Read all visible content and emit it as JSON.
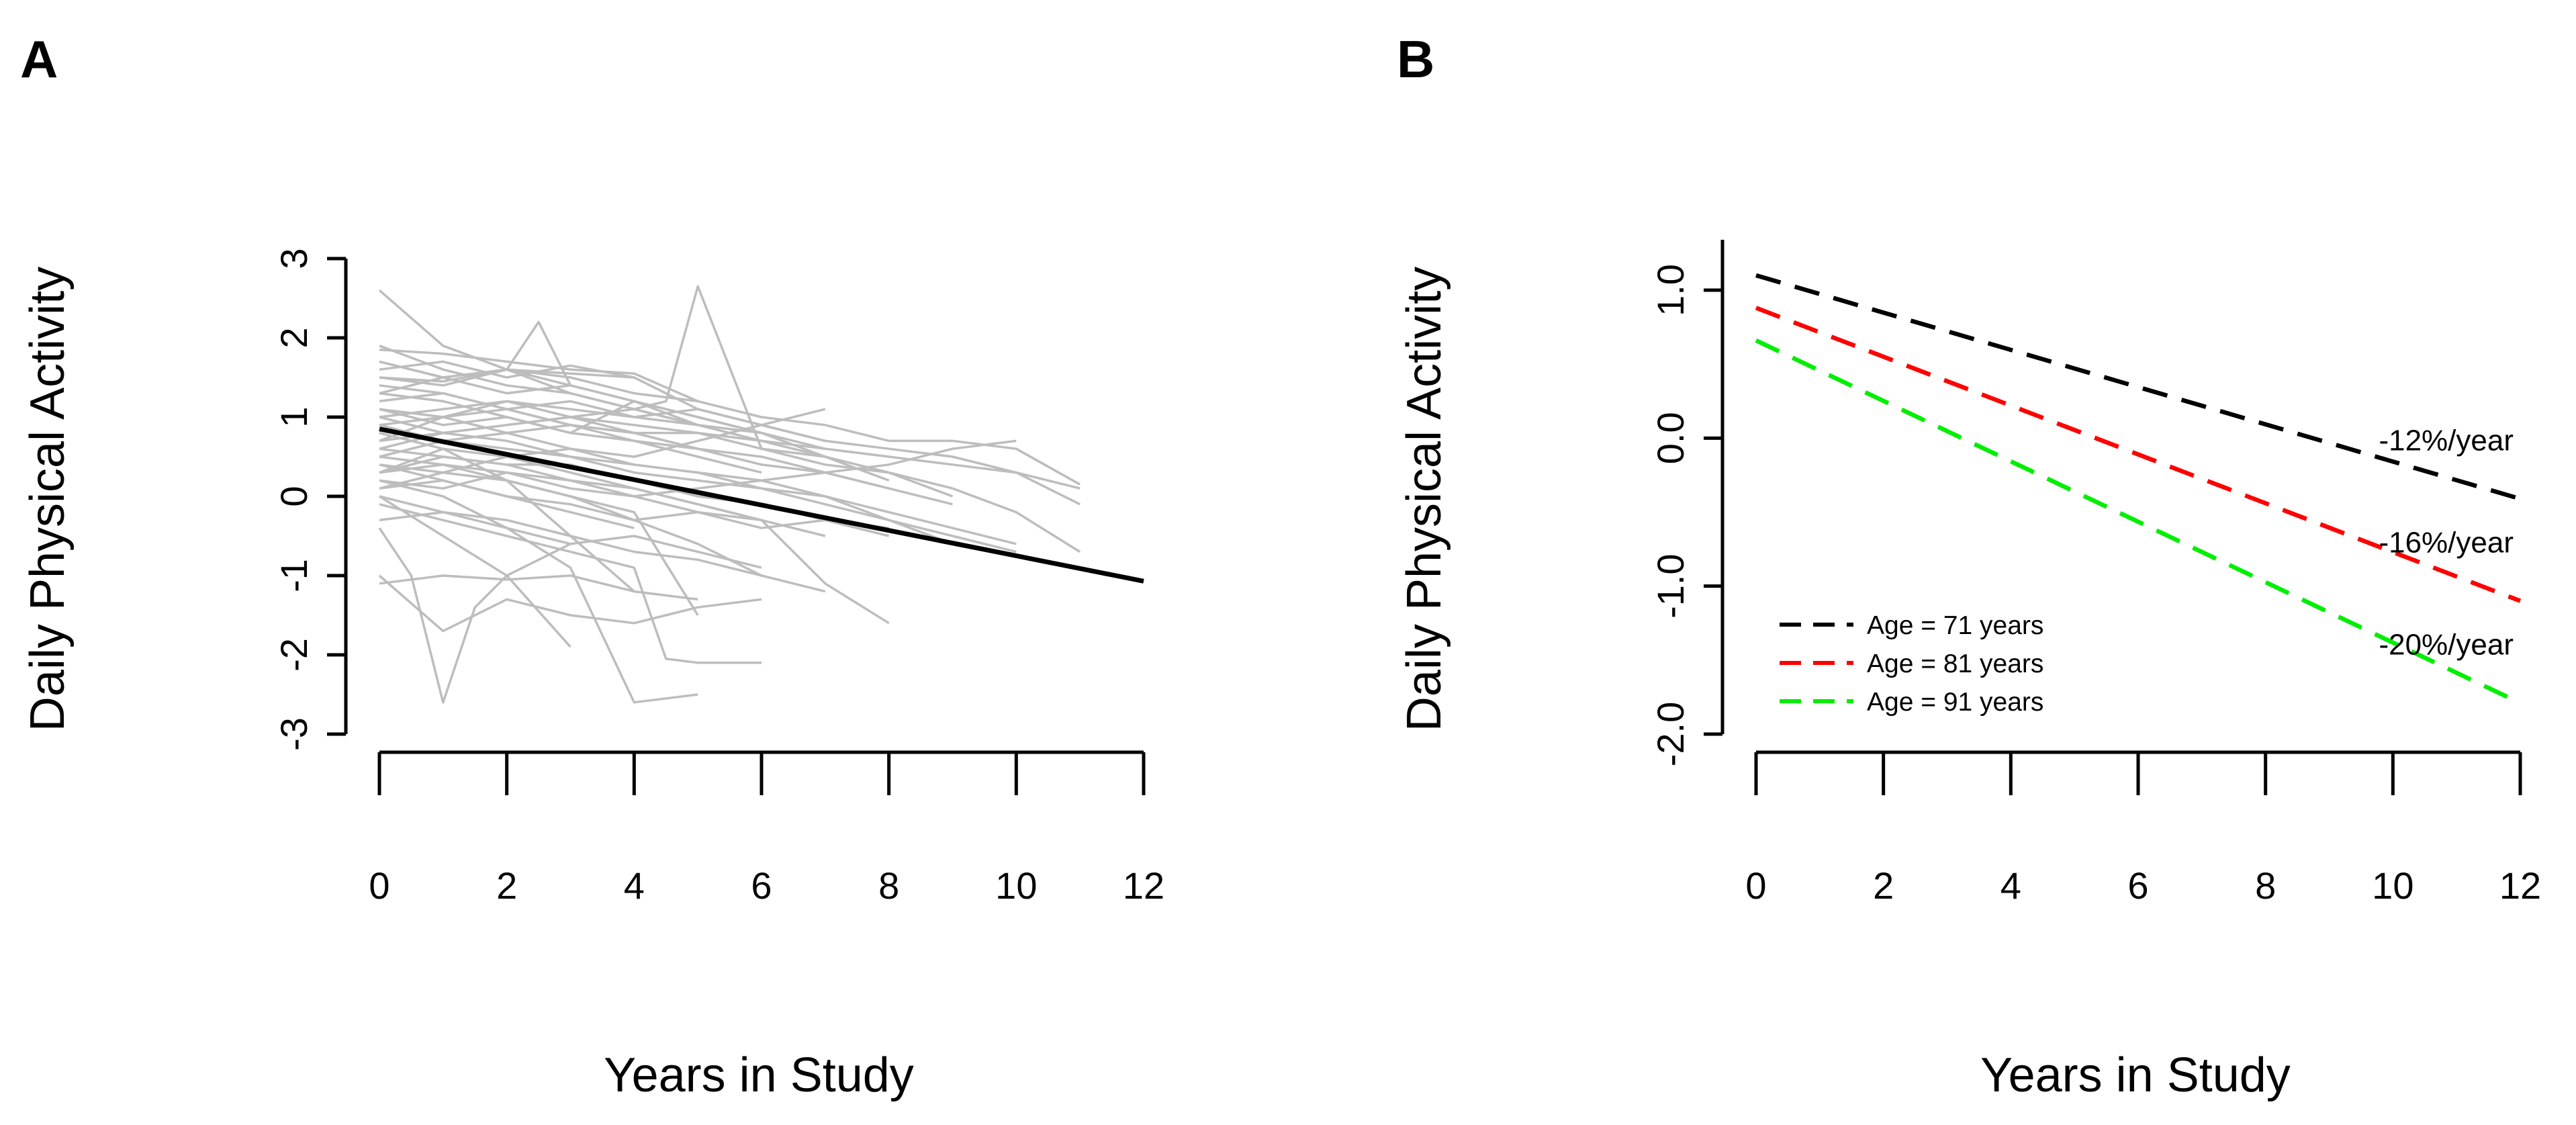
{
  "chart_data": [
    {
      "panel": "A",
      "type": "line",
      "xlabel": "Years in Study",
      "ylabel": "Daily Physical Activity",
      "xlim": [
        0,
        12
      ],
      "ylim": [
        -3,
        3
      ],
      "x_ticks": [
        "0",
        "2",
        "4",
        "6",
        "8",
        "10",
        "12"
      ],
      "y_ticks": [
        "-3",
        "-2",
        "-1",
        "0",
        "1",
        "2",
        "3"
      ],
      "grid": false,
      "colors": {
        "individual": "#bdbdbd",
        "mean": "#000000"
      },
      "mean_line": {
        "x": [
          0,
          12
        ],
        "y": [
          0.85,
          -1.07
        ]
      },
      "individual_trajectories": [
        {
          "x": [
            0,
            1,
            2,
            3,
            4,
            5
          ],
          "y": [
            2.6,
            1.9,
            1.6,
            1.3,
            1.1,
            0.9
          ]
        },
        {
          "x": [
            0,
            1,
            2,
            3,
            4,
            5,
            6,
            7,
            8,
            9,
            10,
            11
          ],
          "y": [
            1.85,
            1.8,
            1.7,
            1.6,
            1.55,
            1.2,
            1.0,
            0.9,
            0.7,
            0.7,
            0.6,
            0.15
          ]
        },
        {
          "x": [
            0,
            1,
            2,
            3,
            4,
            5,
            6,
            7,
            8,
            9,
            10,
            11
          ],
          "y": [
            1.5,
            1.45,
            1.6,
            1.55,
            1.5,
            1.1,
            0.9,
            0.7,
            0.6,
            0.5,
            0.3,
            -0.1
          ]
        },
        {
          "x": [
            0,
            1,
            2,
            3,
            4,
            5,
            6,
            7,
            8,
            9,
            10,
            11
          ],
          "y": [
            1.0,
            1.1,
            1.2,
            1.1,
            1.0,
            0.9,
            0.7,
            0.5,
            0.3,
            0.1,
            -0.2,
            -0.7
          ]
        },
        {
          "x": [
            0,
            1,
            2,
            3,
            4,
            5,
            6,
            7,
            8
          ],
          "y": [
            1.7,
            1.5,
            1.3,
            1.4,
            1.2,
            0.9,
            0.8,
            0.5,
            0.2
          ]
        },
        {
          "x": [
            0,
            1,
            2,
            3,
            4,
            5,
            6,
            7,
            8,
            9
          ],
          "y": [
            1.2,
            1.3,
            1.1,
            0.9,
            0.8,
            0.8,
            0.6,
            0.4,
            0.3,
            0.0
          ]
        },
        {
          "x": [
            0,
            1,
            2,
            3,
            4,
            5,
            6,
            7,
            8,
            9,
            10
          ],
          "y": [
            0.5,
            0.7,
            0.6,
            0.5,
            0.4,
            0.3,
            0.2,
            0.0,
            -0.2,
            -0.4,
            -0.6
          ]
        },
        {
          "x": [
            0,
            1,
            2,
            2.5,
            3,
            4,
            5,
            6,
            7
          ],
          "y": [
            1.3,
            1.5,
            1.6,
            2.2,
            1.4,
            1.2,
            1.0,
            0.8,
            0.6
          ]
        },
        {
          "x": [
            0,
            1,
            2,
            3,
            4,
            4.5,
            5,
            6,
            7
          ],
          "y": [
            0.6,
            0.8,
            0.9,
            1.0,
            1.1,
            1.2,
            2.65,
            0.6,
            0.5
          ]
        },
        {
          "x": [
            0,
            1,
            2,
            3,
            4,
            5,
            6,
            7
          ],
          "y": [
            0.9,
            0.7,
            0.8,
            0.6,
            0.5,
            0.7,
            0.9,
            1.1
          ]
        },
        {
          "x": [
            0,
            1,
            2,
            3,
            4,
            5,
            6
          ],
          "y": [
            0.3,
            0.5,
            0.4,
            0.2,
            0.1,
            -0.1,
            -0.3
          ]
        },
        {
          "x": [
            0,
            1,
            2,
            3,
            4,
            5,
            6,
            7,
            8
          ],
          "y": [
            0.1,
            0.2,
            0.0,
            -0.1,
            -0.3,
            -0.2,
            -0.4,
            -0.3,
            -0.5
          ]
        },
        {
          "x": [
            0,
            1,
            2,
            3,
            4,
            5,
            6,
            7,
            8,
            9
          ],
          "y": [
            0.4,
            0.3,
            0.5,
            0.6,
            0.4,
            0.3,
            0.1,
            0.0,
            -0.3,
            -0.6
          ]
        },
        {
          "x": [
            0,
            1,
            2,
            3,
            4
          ],
          "y": [
            1.6,
            1.7,
            1.5,
            1.65,
            1.5
          ]
        },
        {
          "x": [
            0,
            1,
            2,
            3,
            4,
            5,
            6
          ],
          "y": [
            1.1,
            0.9,
            1.0,
            0.8,
            1.2,
            1.0,
            0.8
          ]
        },
        {
          "x": [
            0,
            1,
            2,
            3,
            4,
            5
          ],
          "y": [
            0.7,
            1.0,
            1.2,
            1.0,
            0.8,
            0.6
          ]
        },
        {
          "x": [
            0,
            1,
            2,
            3,
            4,
            5,
            6,
            7,
            8,
            9,
            10
          ],
          "y": [
            0.2,
            0.1,
            0.3,
            0.2,
            0.0,
            0.1,
            0.2,
            0.3,
            0.4,
            0.6,
            0.7
          ]
        },
        {
          "x": [
            0,
            1,
            2,
            3,
            4
          ],
          "y": [
            0.3,
            0.6,
            0.2,
            -0.5,
            -1.2
          ]
        },
        {
          "x": [
            0,
            0.5,
            1,
            1.5,
            2,
            2.5,
            3
          ],
          "y": [
            -0.4,
            -1.0,
            -2.6,
            -1.4,
            -1.0,
            -0.8,
            -0.6
          ]
        },
        {
          "x": [
            0,
            1,
            2,
            3
          ],
          "y": [
            0.0,
            -0.5,
            -1.0,
            -1.9
          ]
        },
        {
          "x": [
            0,
            1,
            2,
            3,
            4,
            5,
            6
          ],
          "y": [
            -1.0,
            -1.7,
            -1.3,
            -1.5,
            -1.6,
            -1.4,
            -1.3
          ]
        },
        {
          "x": [
            0,
            1,
            2,
            3,
            4,
            5
          ],
          "y": [
            -1.1,
            -1.0,
            -1.05,
            -1.0,
            -1.2,
            -1.3
          ]
        },
        {
          "x": [
            0,
            1,
            2,
            3,
            4,
            4.5,
            5,
            6
          ],
          "y": [
            -0.1,
            -0.3,
            -0.5,
            -0.7,
            -0.9,
            -2.05,
            -2.1,
            -2.1
          ]
        },
        {
          "x": [
            0,
            1,
            2,
            3,
            4,
            5
          ],
          "y": [
            0.2,
            0.0,
            -0.4,
            -0.9,
            -2.6,
            -2.5
          ]
        },
        {
          "x": [
            0,
            1,
            2,
            3,
            4,
            5
          ],
          "y": [
            0.5,
            0.4,
            0.2,
            0.0,
            -0.2,
            -1.5
          ]
        },
        {
          "x": [
            0,
            1,
            2,
            3,
            4,
            5,
            6,
            7,
            8
          ],
          "y": [
            0.8,
            0.6,
            0.5,
            0.3,
            0.1,
            -0.1,
            -0.3,
            -1.1,
            -1.6
          ]
        },
        {
          "x": [
            0,
            1,
            2,
            3,
            4,
            5,
            6,
            7
          ],
          "y": [
            1.4,
            1.3,
            1.1,
            1.2,
            1.0,
            1.1,
            0.9,
            0.7
          ]
        },
        {
          "x": [
            0,
            1,
            2,
            3,
            4,
            5,
            6,
            7,
            8,
            9,
            10
          ],
          "y": [
            1.0,
            0.8,
            0.7,
            0.5,
            0.3,
            0.2,
            0.1,
            -0.1,
            -0.3,
            -0.5,
            -0.7
          ]
        },
        {
          "x": [
            0,
            1,
            2,
            3,
            4,
            5,
            6,
            7,
            8
          ],
          "y": [
            0.6,
            0.5,
            0.4,
            0.4,
            0.2,
            0.0,
            -0.1,
            -0.3,
            -0.4
          ]
        },
        {
          "x": [
            0,
            1,
            2,
            3,
            4,
            5
          ],
          "y": [
            1.9,
            1.6,
            1.4,
            1.3,
            1.1,
            0.9
          ]
        },
        {
          "x": [
            0,
            1,
            2,
            3,
            4,
            5,
            6,
            7
          ],
          "y": [
            0.0,
            -0.2,
            -0.3,
            -0.5,
            -0.7,
            -0.8,
            -1.0,
            -1.2
          ]
        },
        {
          "x": [
            0,
            1,
            2,
            3,
            4,
            5,
            6
          ],
          "y": [
            1.3,
            1.2,
            1.0,
            0.8,
            0.7,
            0.5,
            0.3
          ]
        },
        {
          "x": [
            0,
            1,
            2,
            3,
            4
          ],
          "y": [
            0.4,
            0.2,
            0.0,
            -0.2,
            -0.4
          ]
        },
        {
          "x": [
            0,
            1,
            2,
            3,
            4,
            5,
            6,
            7,
            8,
            9,
            10,
            11
          ],
          "y": [
            0.7,
            0.8,
            0.9,
            1.0,
            0.9,
            0.8,
            0.7,
            0.6,
            0.5,
            0.4,
            0.3,
            0.1
          ]
        },
        {
          "x": [
            0,
            1,
            2,
            3,
            4,
            5,
            6
          ],
          "y": [
            -0.3,
            -0.2,
            -0.4,
            -0.6,
            -0.5,
            -0.7,
            -0.9
          ]
        },
        {
          "x": [
            0,
            1,
            2,
            3,
            4,
            5
          ],
          "y": [
            1.5,
            1.4,
            1.6,
            1.5,
            1.3,
            1.2
          ]
        },
        {
          "x": [
            0,
            1,
            2,
            3,
            4,
            5,
            6,
            7,
            8
          ],
          "y": [
            1.1,
            1.0,
            1.1,
            0.9,
            0.8,
            0.6,
            0.5,
            0.3,
            0.1
          ]
        },
        {
          "x": [
            0,
            1,
            2,
            3,
            4,
            5,
            6,
            7
          ],
          "y": [
            0.3,
            0.4,
            0.3,
            0.1,
            0.0,
            -0.2,
            -0.3,
            -0.5
          ]
        },
        {
          "x": [
            0,
            1,
            2,
            3,
            4,
            5,
            6,
            7,
            8,
            9
          ],
          "y": [
            0.9,
            1.0,
            0.8,
            0.9,
            0.7,
            0.6,
            0.4,
            0.3,
            0.1,
            -0.1
          ]
        },
        {
          "x": [
            0,
            1,
            2,
            3
          ],
          "y": [
            1.7,
            1.5,
            1.6,
            1.4
          ]
        },
        {
          "x": [
            0,
            1,
            2,
            3,
            4,
            5,
            6
          ],
          "y": [
            0.1,
            0.3,
            0.2,
            0.0,
            -0.3,
            -0.6,
            -1.0
          ]
        }
      ]
    },
    {
      "panel": "B",
      "type": "line",
      "xlabel": "Years in Study",
      "ylabel": "Daily Physical Activity",
      "xlim": [
        0,
        12
      ],
      "ylim": [
        -2.0,
        1.0
      ],
      "x_ticks": [
        "0",
        "2",
        "4",
        "6",
        "8",
        "10",
        "12"
      ],
      "y_ticks": [
        "-2.0",
        "-1.0",
        "0.0",
        "1.0"
      ],
      "grid": false,
      "legend_position": "bottom-left",
      "series": [
        {
          "name": "Age = 71 years",
          "color": "#000000",
          "x": [
            0,
            12
          ],
          "y": [
            1.1,
            -0.41
          ],
          "rate_label": "-12%/year"
        },
        {
          "name": "Age = 81 years",
          "color": "#ff0000",
          "x": [
            0,
            12
          ],
          "y": [
            0.88,
            -1.1
          ],
          "rate_label": "-16%/year"
        },
        {
          "name": "Age = 91 years",
          "color": "#00ee00",
          "x": [
            0,
            12
          ],
          "y": [
            0.66,
            -1.79
          ],
          "rate_label": "-20%/year"
        }
      ]
    }
  ]
}
